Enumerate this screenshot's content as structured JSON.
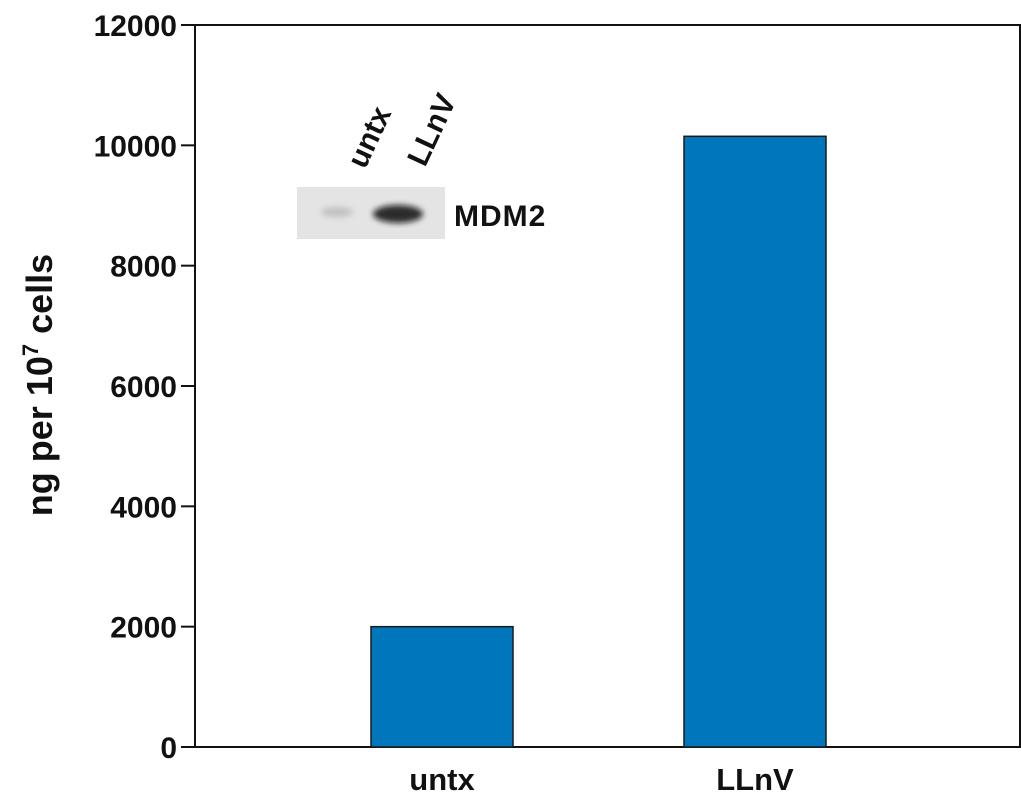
{
  "chart_data": {
    "type": "bar",
    "categories": [
      "untx",
      "LLnV"
    ],
    "values": [
      2000,
      10150
    ],
    "title": "",
    "xlabel": "",
    "ylabel": {
      "main": "ng per 10",
      "sup": "7",
      "tail": " cells"
    },
    "ylim": [
      0,
      12000
    ],
    "yticks": [
      0,
      2000,
      4000,
      6000,
      8000,
      10000,
      12000
    ],
    "grid": false,
    "bar_color": "#0077bd",
    "bar_stroke": "#1a1a1a"
  },
  "inset": {
    "lane_labels": [
      "untx",
      "LLnV"
    ],
    "protein_label": "MDM2",
    "band_intensity": [
      0.2,
      0.85
    ]
  }
}
